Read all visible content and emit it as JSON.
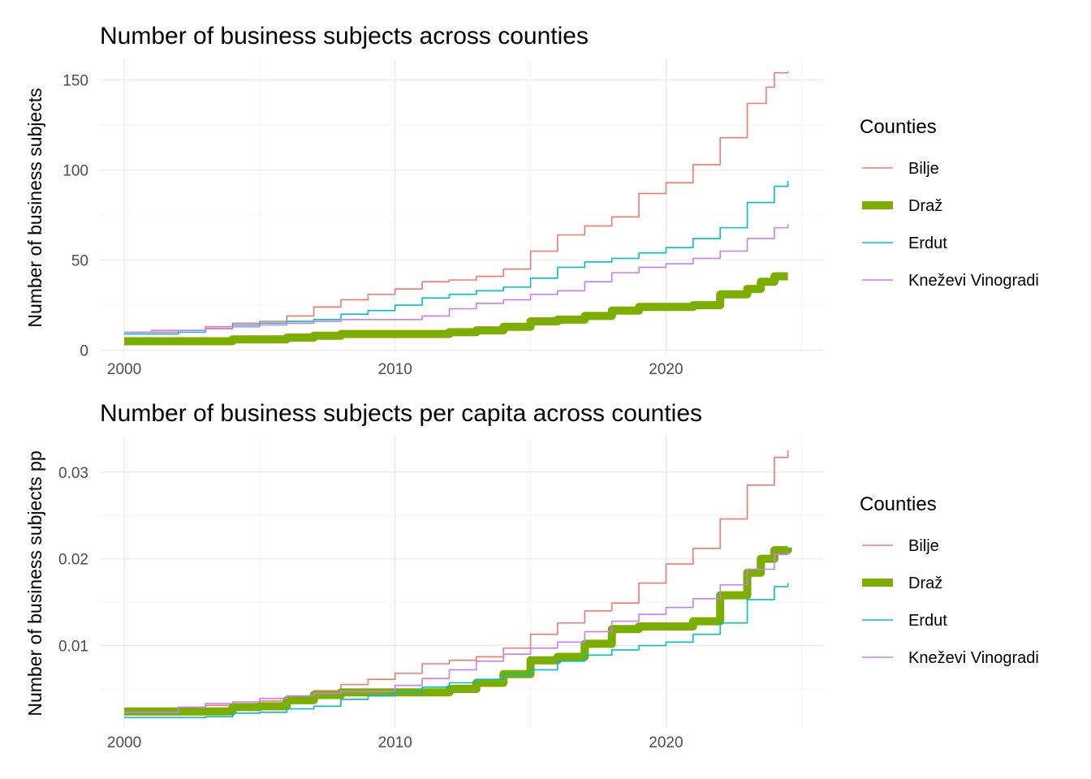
{
  "legend_title": "Counties",
  "series_info": [
    {
      "name": "Bilje",
      "color": "#F8766D",
      "highlight": false
    },
    {
      "name": "Draž",
      "color": "#7CAE00",
      "highlight": true
    },
    {
      "name": "Erdut",
      "color": "#00BFC4",
      "highlight": false
    },
    {
      "name": "Kneževi Vinogradi",
      "color": "#C77CFF",
      "highlight": false
    }
  ],
  "chart_data": [
    {
      "type": "line",
      "title": "Number of business subjects across counties",
      "xlabel": "",
      "ylabel": "Number of business subjects",
      "xlim": [
        1999.1,
        2025.8
      ],
      "ylim": [
        -2,
        162
      ],
      "x_ticks": [
        2000,
        2010,
        2020
      ],
      "x_tick_labels": [
        "2000",
        "2010",
        "2020"
      ],
      "y_ticks": [
        0,
        50,
        100,
        150
      ],
      "y_tick_labels": [
        "0",
        "50",
        "100",
        "150"
      ],
      "grid": true,
      "legend_position": "right",
      "series": [
        {
          "name": "Bilje",
          "points": [
            [
              2000,
              10
            ],
            [
              2002,
              11
            ],
            [
              2003,
              13
            ],
            [
              2004,
              15
            ],
            [
              2005,
              16
            ],
            [
              2006,
              19
            ],
            [
              2007,
              24
            ],
            [
              2008,
              28
            ],
            [
              2009,
              31
            ],
            [
              2010,
              34
            ],
            [
              2011,
              38
            ],
            [
              2012,
              39
            ],
            [
              2013,
              41
            ],
            [
              2014,
              45
            ],
            [
              2015,
              55
            ],
            [
              2016,
              64
            ],
            [
              2017,
              69
            ],
            [
              2018,
              74
            ],
            [
              2019,
              87
            ],
            [
              2020,
              93
            ],
            [
              2021,
              103
            ],
            [
              2022,
              118
            ],
            [
              2023,
              137
            ],
            [
              2023.7,
              146
            ],
            [
              2024,
              154
            ],
            [
              2024.5,
              155
            ]
          ]
        },
        {
          "name": "Draž",
          "points": [
            [
              2000,
              5
            ],
            [
              2003,
              5
            ],
            [
              2004,
              6
            ],
            [
              2005,
              6
            ],
            [
              2006,
              7
            ],
            [
              2007,
              8
            ],
            [
              2008,
              9
            ],
            [
              2010,
              9
            ],
            [
              2011,
              9
            ],
            [
              2012,
              10
            ],
            [
              2013,
              11
            ],
            [
              2014,
              13
            ],
            [
              2015,
              16
            ],
            [
              2016,
              17
            ],
            [
              2017,
              19
            ],
            [
              2018,
              22
            ],
            [
              2019,
              24
            ],
            [
              2020,
              24
            ],
            [
              2021,
              25
            ],
            [
              2022,
              31
            ],
            [
              2023,
              34
            ],
            [
              2023.5,
              38
            ],
            [
              2024,
              41
            ],
            [
              2024.5,
              41
            ]
          ]
        },
        {
          "name": "Erdut",
          "points": [
            [
              2000,
              9
            ],
            [
              2002,
              10
            ],
            [
              2003,
              12
            ],
            [
              2004,
              14
            ],
            [
              2005,
              15
            ],
            [
              2006,
              16
            ],
            [
              2007,
              17
            ],
            [
              2008,
              20
            ],
            [
              2009,
              22
            ],
            [
              2010,
              25
            ],
            [
              2011,
              29
            ],
            [
              2012,
              31
            ],
            [
              2013,
              33
            ],
            [
              2014,
              35
            ],
            [
              2015,
              40
            ],
            [
              2016,
              46
            ],
            [
              2017,
              49
            ],
            [
              2018,
              51
            ],
            [
              2019,
              54
            ],
            [
              2020,
              57
            ],
            [
              2021,
              62
            ],
            [
              2022,
              68
            ],
            [
              2023,
              82
            ],
            [
              2024,
              91
            ],
            [
              2024.5,
              94
            ]
          ]
        },
        {
          "name": "Kneževi Vinogradi",
          "points": [
            [
              2000,
              10
            ],
            [
              2001,
              11
            ],
            [
              2003,
              12
            ],
            [
              2004,
              13
            ],
            [
              2005,
              14
            ],
            [
              2006,
              15
            ],
            [
              2007,
              16
            ],
            [
              2008,
              17
            ],
            [
              2010,
              17
            ],
            [
              2011,
              19
            ],
            [
              2012,
              23
            ],
            [
              2013,
              26
            ],
            [
              2014,
              28
            ],
            [
              2015,
              31
            ],
            [
              2016,
              33
            ],
            [
              2017,
              38
            ],
            [
              2018,
              43
            ],
            [
              2019,
              46
            ],
            [
              2020,
              48
            ],
            [
              2021,
              51
            ],
            [
              2022,
              55
            ],
            [
              2023,
              62
            ],
            [
              2024,
              68
            ],
            [
              2024.5,
              70
            ]
          ]
        }
      ]
    },
    {
      "type": "line",
      "title": "Number of business subjects per capita across counties",
      "xlabel": "",
      "ylabel": "Number of business subjects pp",
      "xlim": [
        1999.1,
        2025.8
      ],
      "ylim": [
        0.0006,
        0.0341
      ],
      "x_ticks": [
        2000,
        2010,
        2020
      ],
      "x_tick_labels": [
        "2000",
        "2010",
        "2020"
      ],
      "y_ticks": [
        0.01,
        0.02,
        0.03
      ],
      "y_tick_labels": [
        "0.01",
        "0.02",
        "0.03"
      ],
      "grid": true,
      "legend_position": "right",
      "series": [
        {
          "name": "Bilje",
          "points": [
            [
              2000,
              0.0021
            ],
            [
              2001,
              0.0025
            ],
            [
              2002,
              0.0027
            ],
            [
              2003,
              0.0031
            ],
            [
              2004,
              0.0033
            ],
            [
              2005,
              0.0036
            ],
            [
              2006,
              0.0041
            ],
            [
              2007,
              0.0048
            ],
            [
              2008,
              0.0055
            ],
            [
              2009,
              0.0061
            ],
            [
              2010,
              0.0068
            ],
            [
              2011,
              0.0079
            ],
            [
              2012,
              0.0083
            ],
            [
              2013,
              0.0087
            ],
            [
              2014,
              0.0097
            ],
            [
              2015,
              0.0113
            ],
            [
              2016,
              0.0126
            ],
            [
              2017,
              0.014
            ],
            [
              2018,
              0.0149
            ],
            [
              2019,
              0.0172
            ],
            [
              2020,
              0.0194
            ],
            [
              2021,
              0.0212
            ],
            [
              2022,
              0.0246
            ],
            [
              2023,
              0.0285
            ],
            [
              2024,
              0.0317
            ],
            [
              2024.5,
              0.0325
            ]
          ]
        },
        {
          "name": "Draž",
          "points": [
            [
              2000,
              0.0024
            ],
            [
              2003,
              0.0024
            ],
            [
              2004,
              0.0029
            ],
            [
              2005,
              0.003
            ],
            [
              2006,
              0.0037
            ],
            [
              2007,
              0.0043
            ],
            [
              2008,
              0.0046
            ],
            [
              2010,
              0.0046
            ],
            [
              2011,
              0.0046
            ],
            [
              2012,
              0.005
            ],
            [
              2013,
              0.0057
            ],
            [
              2014,
              0.0067
            ],
            [
              2015,
              0.0083
            ],
            [
              2016,
              0.0087
            ],
            [
              2017,
              0.0102
            ],
            [
              2018,
              0.0119
            ],
            [
              2019,
              0.0122
            ],
            [
              2020,
              0.0122
            ],
            [
              2021,
              0.0128
            ],
            [
              2022,
              0.0158
            ],
            [
              2023,
              0.0184
            ],
            [
              2023.5,
              0.02
            ],
            [
              2024,
              0.021
            ],
            [
              2024.5,
              0.0213
            ]
          ]
        },
        {
          "name": "Erdut",
          "points": [
            [
              2000,
              0.0017
            ],
            [
              2003,
              0.0018
            ],
            [
              2004,
              0.0022
            ],
            [
              2005,
              0.0023
            ],
            [
              2006,
              0.0027
            ],
            [
              2007,
              0.003
            ],
            [
              2008,
              0.0038
            ],
            [
              2009,
              0.0042
            ],
            [
              2010,
              0.0046
            ],
            [
              2011,
              0.0052
            ],
            [
              2012,
              0.0057
            ],
            [
              2013,
              0.0061
            ],
            [
              2014,
              0.0066
            ],
            [
              2015,
              0.0072
            ],
            [
              2016,
              0.0082
            ],
            [
              2017,
              0.0089
            ],
            [
              2018,
              0.0095
            ],
            [
              2019,
              0.01
            ],
            [
              2020,
              0.0104
            ],
            [
              2021,
              0.0113
            ],
            [
              2022,
              0.0126
            ],
            [
              2023,
              0.0153
            ],
            [
              2024,
              0.0168
            ],
            [
              2024.5,
              0.0172
            ]
          ]
        },
        {
          "name": "Kneževi Vinogradi",
          "points": [
            [
              2000,
              0.0023
            ],
            [
              2002,
              0.0029
            ],
            [
              2003,
              0.0033
            ],
            [
              2004,
              0.0035
            ],
            [
              2005,
              0.0039
            ],
            [
              2006,
              0.0042
            ],
            [
              2007,
              0.0045
            ],
            [
              2008,
              0.0047
            ],
            [
              2010,
              0.0054
            ],
            [
              2011,
              0.0062
            ],
            [
              2012,
              0.0072
            ],
            [
              2013,
              0.0082
            ],
            [
              2014,
              0.009
            ],
            [
              2015,
              0.0097
            ],
            [
              2016,
              0.0104
            ],
            [
              2017,
              0.0116
            ],
            [
              2018,
              0.0128
            ],
            [
              2019,
              0.0136
            ],
            [
              2020,
              0.0144
            ],
            [
              2021,
              0.0154
            ],
            [
              2022,
              0.017
            ],
            [
              2023,
              0.0188
            ],
            [
              2024,
              0.0205
            ],
            [
              2024.5,
              0.0208
            ]
          ]
        }
      ]
    }
  ]
}
